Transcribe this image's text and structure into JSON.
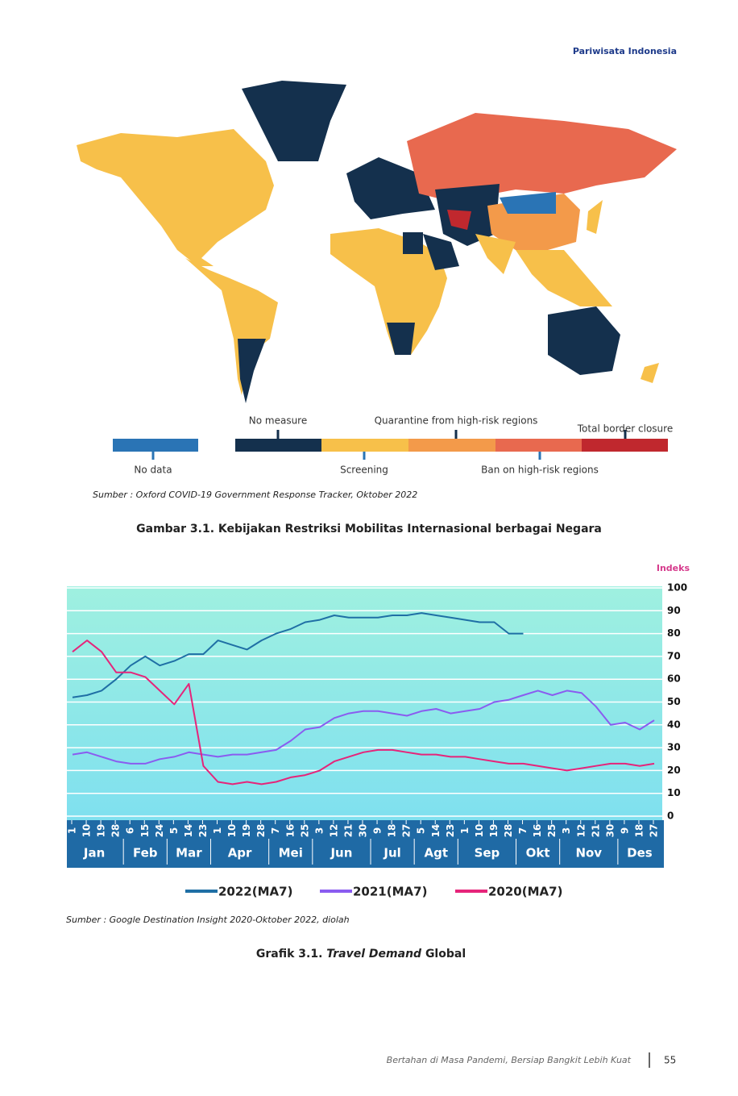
{
  "header": {
    "title": "Pariwisata Indonesia"
  },
  "map": {
    "legend": [
      {
        "label": "No data",
        "color": "#2a74b5"
      },
      {
        "label": "No measure",
        "color": "#14304d"
      },
      {
        "label": "Screening",
        "color": "#f7c04a"
      },
      {
        "label": "Quarantine from high-risk regions",
        "color": "#f39a4a"
      },
      {
        "label": "Ban on high-risk regions",
        "color": "#e8694f"
      },
      {
        "label": "Total border closure",
        "color": "#c0282e"
      }
    ],
    "source": "Sumber : Oxford COVID-19 Government Response Tracker, Oktober 2022",
    "caption": "Gambar 3.1. Kebijakan Restriksi Mobilitas Internasional berbagai Negara"
  },
  "chart_data": {
    "type": "line",
    "y_label": "Indeks",
    "categories": [
      "1",
      "10",
      "19",
      "28",
      "6",
      "15",
      "24",
      "5",
      "14",
      "23",
      "1",
      "10",
      "19",
      "28",
      "7",
      "16",
      "25",
      "3",
      "12",
      "21",
      "30",
      "9",
      "18",
      "27",
      "5",
      "14",
      "23",
      "1",
      "10",
      "19",
      "28",
      "7",
      "16",
      "25",
      "3",
      "12",
      "21",
      "30",
      "9",
      "18",
      "27"
    ],
    "months": [
      "Jan",
      "Feb",
      "Mar",
      "Apr",
      "Mei",
      "Jun",
      "Jul",
      "Agt",
      "Sep",
      "Okt",
      "Nov",
      "Des"
    ],
    "series": [
      {
        "name": "2022(MA7)",
        "color": "#1f6fa5",
        "values": [
          52,
          53,
          55,
          60,
          66,
          70,
          66,
          68,
          71,
          71,
          77,
          75,
          73,
          77,
          80,
          82,
          85,
          86,
          88,
          87,
          87,
          87,
          88,
          88,
          89,
          88,
          87,
          86,
          85,
          85,
          80,
          80,
          null,
          null,
          null,
          null,
          null,
          null,
          null,
          null,
          null
        ]
      },
      {
        "name": "2021(MA7)",
        "color": "#8a5cf0",
        "values": [
          27,
          28,
          26,
          24,
          23,
          23,
          25,
          26,
          28,
          27,
          26,
          27,
          27,
          28,
          29,
          33,
          38,
          39,
          43,
          45,
          46,
          46,
          45,
          44,
          46,
          47,
          45,
          46,
          47,
          50,
          51,
          53,
          55,
          53,
          55,
          54,
          48,
          40,
          41,
          38,
          42
        ]
      },
      {
        "name": "2020(MA7)",
        "color": "#e6247a",
        "values": [
          72,
          77,
          72,
          63,
          63,
          61,
          55,
          49,
          58,
          22,
          15,
          14,
          15,
          14,
          15,
          17,
          18,
          20,
          24,
          26,
          28,
          29,
          29,
          28,
          27,
          27,
          26,
          26,
          25,
          24,
          23,
          23,
          22,
          21,
          20,
          21,
          22,
          23,
          23,
          22,
          23
        ]
      }
    ],
    "ylim": [
      0,
      100
    ],
    "yticks": [
      0,
      10,
      20,
      30,
      40,
      50,
      60,
      70,
      80,
      90,
      100
    ],
    "grid": true,
    "source": "Sumber : Google Destination Insight 2020-Oktober 2022, diolah",
    "caption": {
      "prefix": "Grafik 3.1.",
      "italic": "Travel Demand",
      "suffix": "Global"
    }
  },
  "footer": {
    "text": "Bertahan di Masa Pandemi, Bersiap Bangkit Lebih Kuat",
    "page": "55"
  }
}
